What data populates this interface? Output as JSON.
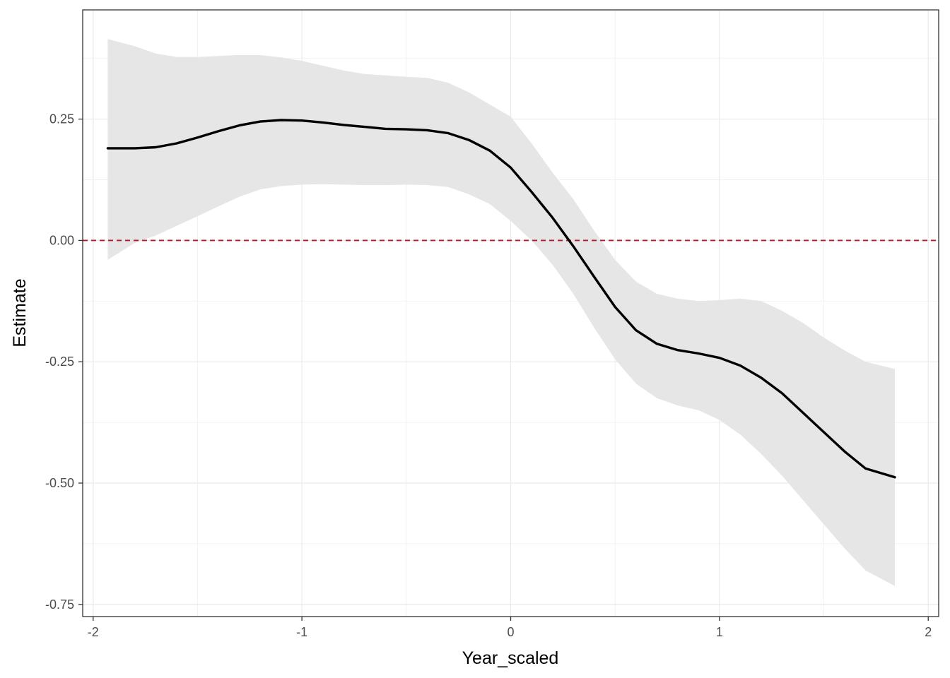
{
  "chart_data": {
    "type": "line",
    "xlabel": "Year_scaled",
    "ylabel": "Estimate",
    "xlim": [
      -2.05,
      2.05
    ],
    "ylim": [
      -0.775,
      0.475
    ],
    "x_ticks": [
      -2,
      -1,
      0,
      1,
      2
    ],
    "x_tick_labels": [
      "-2",
      "-1",
      "0",
      "1",
      "2"
    ],
    "y_ticks": [
      -0.75,
      -0.5,
      -0.25,
      0,
      0.25
    ],
    "y_tick_labels": [
      "-0.75",
      "-0.50",
      "-0.25",
      "0.00",
      "0.25"
    ],
    "grid": true,
    "reference_line": {
      "y": 0,
      "style": "dashed",
      "color": "#b2182b"
    },
    "series": [
      {
        "color": "#000000",
        "ribbon_color": "#e6e6e6",
        "x": [
          -1.93,
          -1.8,
          -1.7,
          -1.6,
          -1.5,
          -1.4,
          -1.3,
          -1.2,
          -1.1,
          -1.0,
          -0.9,
          -0.8,
          -0.7,
          -0.6,
          -0.5,
          -0.4,
          -0.3,
          -0.2,
          -0.1,
          0.0,
          0.1,
          0.2,
          0.3,
          0.4,
          0.5,
          0.6,
          0.7,
          0.8,
          0.9,
          1.0,
          1.1,
          1.2,
          1.3,
          1.4,
          1.5,
          1.6,
          1.7,
          1.84
        ],
        "y": [
          0.19,
          0.19,
          0.192,
          0.2,
          0.212,
          0.225,
          0.237,
          0.245,
          0.248,
          0.247,
          0.243,
          0.238,
          0.234,
          0.23,
          0.229,
          0.227,
          0.221,
          0.207,
          0.185,
          0.15,
          0.1,
          0.047,
          -0.012,
          -0.075,
          -0.137,
          -0.185,
          -0.213,
          -0.226,
          -0.233,
          -0.242,
          -0.258,
          -0.283,
          -0.315,
          -0.355,
          -0.395,
          -0.435,
          -0.47,
          -0.488
        ],
        "lower": [
          -0.04,
          -0.005,
          0.01,
          0.03,
          0.05,
          0.07,
          0.09,
          0.105,
          0.112,
          0.115,
          0.116,
          0.115,
          0.114,
          0.114,
          0.115,
          0.114,
          0.11,
          0.095,
          0.075,
          0.04,
          0.0,
          -0.05,
          -0.11,
          -0.18,
          -0.245,
          -0.295,
          -0.325,
          -0.34,
          -0.35,
          -0.37,
          -0.4,
          -0.44,
          -0.485,
          -0.535,
          -0.585,
          -0.635,
          -0.68,
          -0.712
        ],
        "upper": [
          0.415,
          0.4,
          0.385,
          0.378,
          0.378,
          0.38,
          0.382,
          0.382,
          0.377,
          0.37,
          0.36,
          0.35,
          0.343,
          0.34,
          0.337,
          0.335,
          0.325,
          0.305,
          0.28,
          0.255,
          0.2,
          0.14,
          0.085,
          0.02,
          -0.04,
          -0.085,
          -0.11,
          -0.12,
          -0.125,
          -0.123,
          -0.12,
          -0.125,
          -0.145,
          -0.17,
          -0.2,
          -0.227,
          -0.25,
          -0.265
        ]
      }
    ]
  }
}
